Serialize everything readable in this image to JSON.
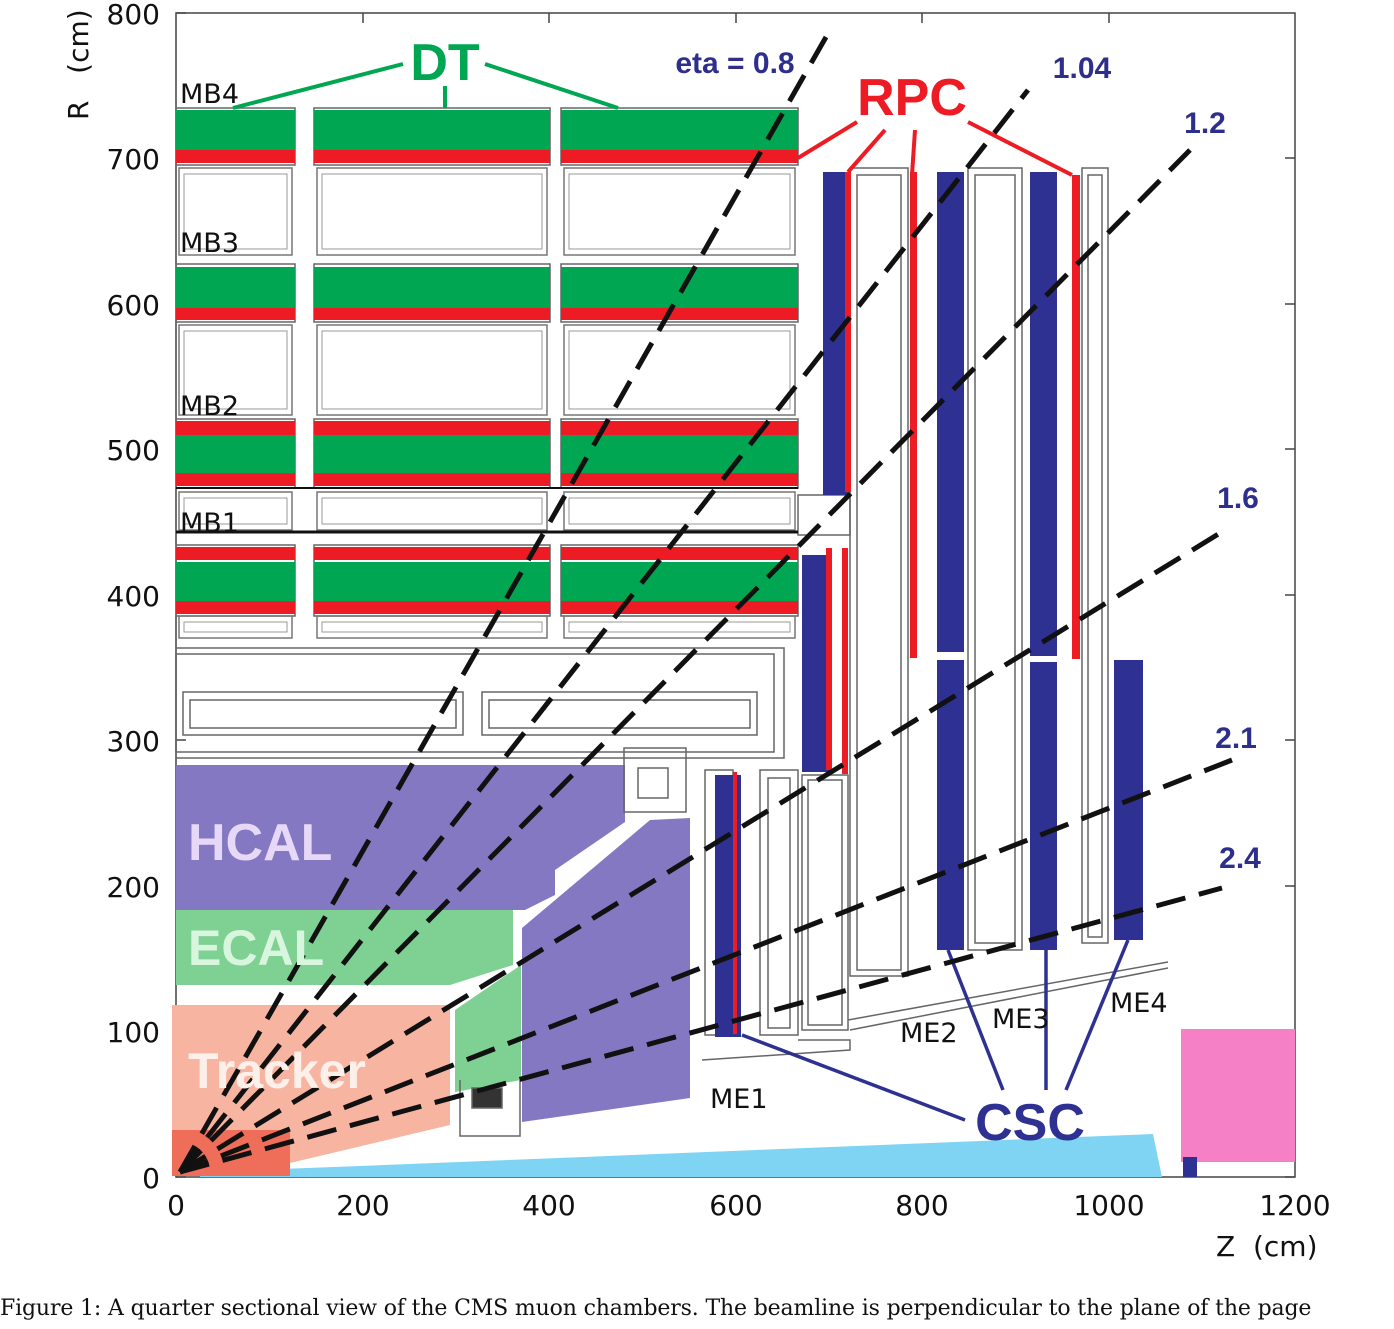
{
  "axes": {
    "x_label": "Z  (cm)",
    "y_label": "R   (cm)",
    "x_ticks": [
      "0",
      "200",
      "400",
      "600",
      "800",
      "1000",
      "1200"
    ],
    "y_ticks": [
      "0",
      "100",
      "200",
      "300",
      "400",
      "500",
      "600",
      "700",
      "800"
    ],
    "x_range": [
      0,
      1200
    ],
    "y_range": [
      0,
      800
    ]
  },
  "subsystems": {
    "dt": "DT",
    "rpc": "RPC",
    "csc": "CSC",
    "hcal": "HCAL",
    "ecal": "ECAL",
    "tracker": "Tracker"
  },
  "barrel_stations": [
    "MB4",
    "MB3",
    "MB2",
    "MB1"
  ],
  "endcap_stations": [
    "ME1",
    "ME2",
    "ME3",
    "ME4"
  ],
  "eta_lines": [
    "eta = 0.8",
    "1.04",
    "1.2",
    "1.6",
    "2.1",
    "2.4"
  ],
  "colors": {
    "dt": "#00a651",
    "rpc": "#ed1c24",
    "csc": "#2e3192",
    "hcal": "#8478c2",
    "ecal": "#7ed192",
    "tracker": "#f7b4a0",
    "tracker_inner": "#ee6e5a",
    "beampipe": "#7fd4f4",
    "forward": "#f580c6"
  },
  "caption": "Figure 1: A quarter sectional view of the CMS muon chambers. The beamline is perpendicular to the plane of the page"
}
